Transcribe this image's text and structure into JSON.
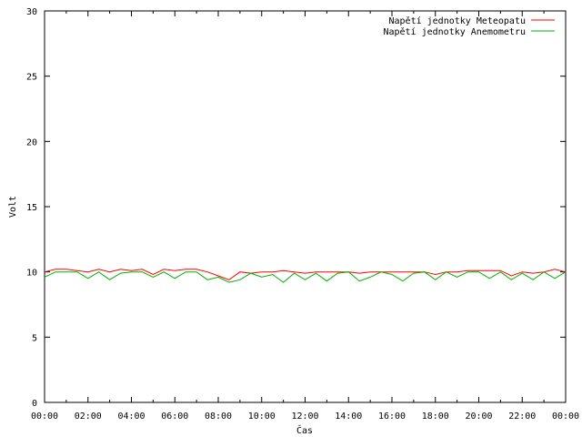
{
  "chart_data": {
    "type": "line",
    "title": "",
    "xlabel": "Čas",
    "ylabel": "Volt",
    "ylim": [
      0,
      30
    ],
    "yticks": [
      0,
      5,
      10,
      15,
      20,
      25,
      30
    ],
    "xlim": [
      "00:00",
      "24:00"
    ],
    "xtick_labels": [
      "00:00",
      "02:00",
      "04:00",
      "06:00",
      "08:00",
      "10:00",
      "12:00",
      "14:00",
      "16:00",
      "18:00",
      "20:00",
      "22:00",
      "00:00"
    ],
    "grid": false,
    "legend_position": "top-right",
    "series": [
      {
        "name": "Napětí jednotky Meteopatu",
        "color": "#ff0000",
        "x": [
          "00:00",
          "00:30",
          "01:00",
          "01:30",
          "02:00",
          "02:30",
          "03:00",
          "03:30",
          "04:00",
          "04:30",
          "05:00",
          "05:30",
          "06:00",
          "06:30",
          "07:00",
          "07:30",
          "08:00",
          "08:30",
          "09:00",
          "09:30",
          "10:00",
          "10:30",
          "11:00",
          "11:30",
          "12:00",
          "12:30",
          "13:00",
          "13:30",
          "14:00",
          "14:30",
          "15:00",
          "15:30",
          "16:00",
          "16:30",
          "17:00",
          "17:30",
          "18:00",
          "18:30",
          "19:00",
          "19:30",
          "20:00",
          "20:30",
          "21:00",
          "21:30",
          "22:00",
          "22:30",
          "23:00",
          "23:30",
          "24:00"
        ],
        "values": [
          10.0,
          10.2,
          10.2,
          10.1,
          10.0,
          10.2,
          10.0,
          10.2,
          10.1,
          10.2,
          9.8,
          10.2,
          10.1,
          10.2,
          10.2,
          10.0,
          9.7,
          9.4,
          10.0,
          9.9,
          10.0,
          10.0,
          10.1,
          10.0,
          9.9,
          10.0,
          10.0,
          10.0,
          10.0,
          9.9,
          10.0,
          10.0,
          10.0,
          10.0,
          10.0,
          10.0,
          9.8,
          10.0,
          10.0,
          10.1,
          10.1,
          10.1,
          10.1,
          9.7,
          10.0,
          9.9,
          10.0,
          10.2,
          10.0
        ]
      },
      {
        "name": "Napětí jednotky Anemometru",
        "color": "#00b000",
        "x": [
          "00:00",
          "00:30",
          "01:00",
          "01:30",
          "02:00",
          "02:30",
          "03:00",
          "03:30",
          "04:00",
          "04:30",
          "05:00",
          "05:30",
          "06:00",
          "06:30",
          "07:00",
          "07:30",
          "08:00",
          "08:30",
          "09:00",
          "09:30",
          "10:00",
          "10:30",
          "11:00",
          "11:30",
          "12:00",
          "12:30",
          "13:00",
          "13:30",
          "14:00",
          "14:30",
          "15:00",
          "15:30",
          "16:00",
          "16:30",
          "17:00",
          "17:30",
          "18:00",
          "18:30",
          "19:00",
          "19:30",
          "20:00",
          "20:30",
          "21:00",
          "21:30",
          "22:00",
          "22:30",
          "23:00",
          "23:30",
          "24:00"
        ],
        "values": [
          9.6,
          10.0,
          10.0,
          10.0,
          9.5,
          10.0,
          9.4,
          9.9,
          10.0,
          10.0,
          9.6,
          10.0,
          9.5,
          10.0,
          10.0,
          9.4,
          9.6,
          9.2,
          9.4,
          9.9,
          9.6,
          9.8,
          9.2,
          9.9,
          9.4,
          9.9,
          9.3,
          9.9,
          10.0,
          9.3,
          9.6,
          10.0,
          9.8,
          9.3,
          9.9,
          10.0,
          9.4,
          10.0,
          9.6,
          10.0,
          10.0,
          9.5,
          10.0,
          9.4,
          9.9,
          9.4,
          10.0,
          9.5,
          10.0
        ]
      }
    ]
  }
}
